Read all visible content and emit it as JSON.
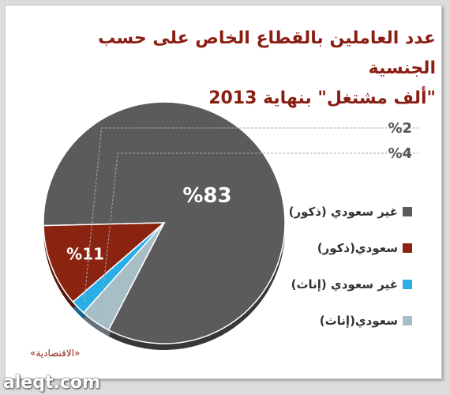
{
  "title_lines": [
    "عدد العاملين بالقطاع الخاص على حسب الجنسية",
    "\"ألف مشتغل\" بنهاية 2013"
  ],
  "source": "«الاقتصادية»",
  "watermark": "aleqt.com",
  "chart_data": {
    "type": "pie",
    "title": "عدد العاملين بالقطاع الخاص على حسب الجنسية \"ألف مشتغل\" بنهاية 2013",
    "slices": [
      {
        "label": "غير سعودي (ذكور)",
        "value": 83,
        "display": "%83",
        "color": "#5b5b5b"
      },
      {
        "label": "سعودي(ذكور)",
        "value": 11,
        "display": "%11",
        "color": "#8a2410"
      },
      {
        "label": "غير سعودي (إناث)",
        "value": 2,
        "display": "%2",
        "color": "#2aaee6"
      },
      {
        "label": "سعودي(إناث)",
        "value": 4,
        "display": "%4",
        "color": "#a8bec6"
      }
    ],
    "legend_placement": "right"
  }
}
